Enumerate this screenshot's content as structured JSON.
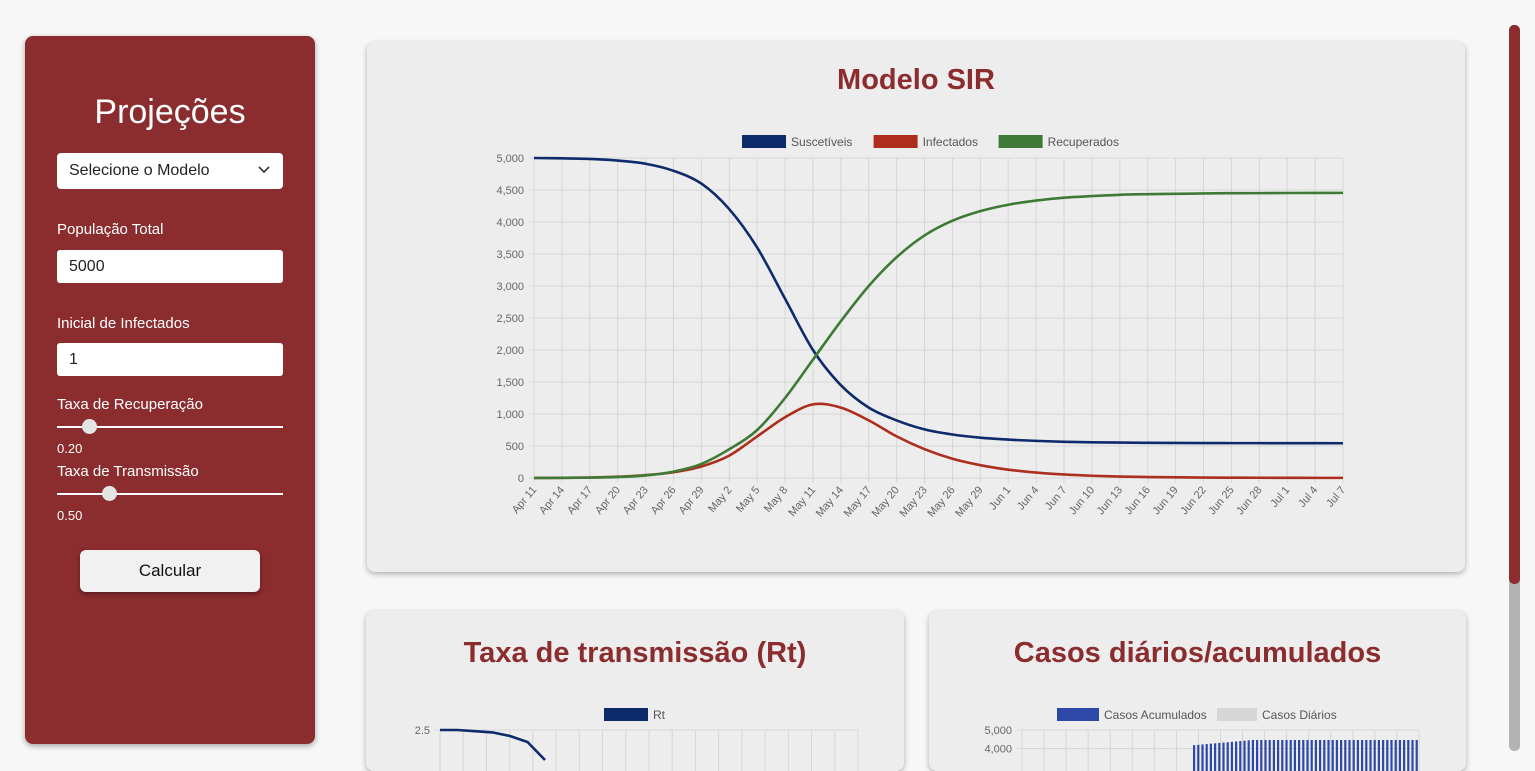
{
  "sidebar": {
    "title": "Projeções",
    "model_select": {
      "value": "Selecione o Modelo"
    },
    "population": {
      "label": "População Total",
      "value": "5000"
    },
    "initial_infected": {
      "label": "Inicial de Infectados",
      "value": "1"
    },
    "recovery_rate": {
      "label": "Taxa de Recuperação",
      "value": "0.20",
      "fraction": 0.14
    },
    "transmission_rate": {
      "label": "Taxa de Transmissão",
      "value": "0.50",
      "fraction": 0.23
    },
    "calculate_label": "Calcular"
  },
  "colors": {
    "brand": "#8b2c2e",
    "susceptible": "#0d2a6b",
    "infected": "#ad2e1c",
    "recovered": "#3e7a36",
    "cumulative": "#2e48a8",
    "daily": "#d6d6d6"
  },
  "scroll": {
    "visible_fraction": 0.77
  },
  "charts": {
    "sir": {
      "title": "Modelo SIR",
      "chart_data": {
        "type": "line",
        "title": "Modelo SIR",
        "legend_position": "top",
        "grid": true,
        "ylim": [
          0,
          5000
        ],
        "yticks": [
          "0",
          "500",
          "1,000",
          "1,500",
          "2,000",
          "2,500",
          "3,000",
          "3,500",
          "4,000",
          "4,500",
          "5,000"
        ],
        "categories": [
          "Apr 11",
          "Apr 14",
          "Apr 17",
          "Apr 20",
          "Apr 23",
          "Apr 26",
          "Apr 29",
          "May 2",
          "May 5",
          "May 8",
          "May 11",
          "May 14",
          "May 17",
          "May 20",
          "May 23",
          "May 26",
          "May 29",
          "Jun 1",
          "Jun 4",
          "Jun 7",
          "Jun 10",
          "Jun 13",
          "Jun 16",
          "Jun 19",
          "Jun 22",
          "Jun 25",
          "Jun 28",
          "Jul 1",
          "Jul 4",
          "Jul 7"
        ],
        "series": [
          {
            "name": "Suscetíveis",
            "values": [
              5000,
              4995,
              4985,
              4960,
              4910,
              4800,
              4600,
              4200,
              3600,
              2800,
              2000,
              1450,
              1100,
              900,
              760,
              680,
              630,
              600,
              580,
              565,
              558,
              553,
              550,
              548,
              546,
              545,
              545,
              544,
              544,
              543
            ]
          },
          {
            "name": "Infectados",
            "values": [
              1,
              3,
              8,
              20,
              45,
              90,
              180,
              350,
              650,
              950,
              1150,
              1100,
              900,
              650,
              450,
              300,
              200,
              130,
              85,
              55,
              35,
              22,
              15,
              10,
              7,
              5,
              4,
              3,
              2,
              2
            ]
          },
          {
            "name": "Recuperados",
            "values": [
              0,
              2,
              6,
              15,
              40,
              100,
              220,
              450,
              750,
              1250,
              1850,
              2450,
              3000,
              3450,
              3790,
              4020,
              4170,
              4270,
              4335,
              4380,
              4405,
              4425,
              4435,
              4440,
              4447,
              4450,
              4451,
              4453,
              4454,
              4455
            ]
          }
        ]
      }
    },
    "rt": {
      "title": "Taxa de transmissão (Rt)",
      "chart_data": {
        "type": "line",
        "title": "Taxa de transmissão (Rt)",
        "legend_position": "top",
        "grid": true,
        "yticks_visible": [
          "2.5"
        ],
        "series": [
          {
            "name": "Rt",
            "values": [
              2.5,
              2.5,
              2.49,
              2.48,
              2.45,
              2.4,
              2.25
            ]
          }
        ]
      }
    },
    "cases": {
      "title": "Casos diários/acumulados",
      "chart_data": {
        "type": "bar",
        "title": "Casos diários/acumulados",
        "legend_position": "top",
        "grid": true,
        "ylim_top": 5000,
        "yticks_visible": [
          "5,000",
          "4,000"
        ],
        "series": [
          {
            "name": "Casos Acumulados",
            "values_visible_tail": [
              4180,
              4200,
              4220,
              4240,
              4260,
              4280,
              4300,
              4320,
              4340,
              4360,
              4380,
              4400,
              4420,
              4440,
              4460,
              4460,
              4460,
              4460,
              4460,
              4460,
              4460,
              4460,
              4460,
              4460,
              4460,
              4460,
              4460,
              4460,
              4460,
              4460,
              4460,
              4460,
              4460,
              4460,
              4460,
              4460,
              4460,
              4460,
              4460,
              4460,
              4460,
              4460,
              4460,
              4460,
              4460,
              4460,
              4460,
              4460,
              4460,
              4460,
              4460,
              4460,
              4460,
              4460
            ]
          },
          {
            "name": "Casos Diários"
          }
        ]
      }
    }
  }
}
